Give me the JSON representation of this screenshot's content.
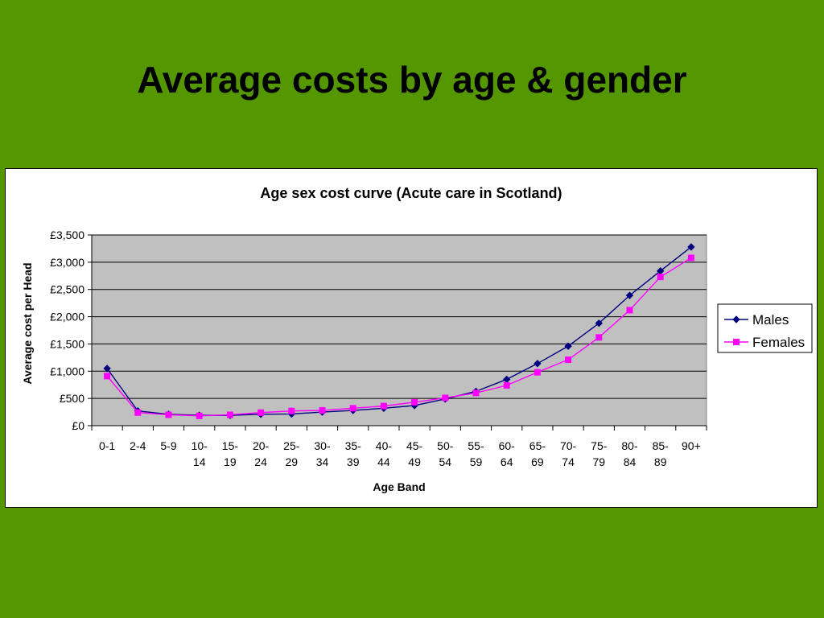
{
  "slide": {
    "title": "Average costs by age & gender"
  },
  "chart_data": {
    "type": "line",
    "title": "Age sex cost curve (Acute care in Scotland)",
    "xlabel": "Age Band",
    "ylabel": "Average cost per Head",
    "categories": [
      [
        "0-1"
      ],
      [
        "2-4"
      ],
      [
        "5-9"
      ],
      [
        "10-",
        "14"
      ],
      [
        "15-",
        "19"
      ],
      [
        "20-",
        "24"
      ],
      [
        "25-",
        "29"
      ],
      [
        "30-",
        "34"
      ],
      [
        "35-",
        "39"
      ],
      [
        "40-",
        "44"
      ],
      [
        "45-",
        "49"
      ],
      [
        "50-",
        "54"
      ],
      [
        "55-",
        "59"
      ],
      [
        "60-",
        "64"
      ],
      [
        "65-",
        "69"
      ],
      [
        "70-",
        "74"
      ],
      [
        "75-",
        "79"
      ],
      [
        "80-",
        "84"
      ],
      [
        "85-",
        "89"
      ],
      [
        "90+"
      ]
    ],
    "ylim": [
      0,
      3500
    ],
    "yticks": [
      {
        "value": 0,
        "label": "£0"
      },
      {
        "value": 500,
        "label": "£500"
      },
      {
        "value": 1000,
        "label": "£1,000"
      },
      {
        "value": 1500,
        "label": "£1,500"
      },
      {
        "value": 2000,
        "label": "£2,000"
      },
      {
        "value": 2500,
        "label": "£2,500"
      },
      {
        "value": 3000,
        "label": "£3,000"
      },
      {
        "value": 3500,
        "label": "£3,500"
      }
    ],
    "grid": true,
    "legend_position": "right",
    "series": [
      {
        "name": "Males",
        "color": "#000080",
        "marker": "diamond",
        "values": [
          1050,
          270,
          210,
          190,
          190,
          210,
          215,
          250,
          280,
          320,
          370,
          490,
          630,
          850,
          1140,
          1460,
          1880,
          2390,
          2840,
          3280
        ]
      },
      {
        "name": "Females",
        "color": "#ff00ff",
        "marker": "square",
        "values": [
          910,
          240,
          200,
          180,
          200,
          240,
          270,
          280,
          320,
          360,
          430,
          510,
          600,
          740,
          980,
          1210,
          1620,
          2120,
          2730,
          3080
        ]
      }
    ],
    "plot_background": "#c0c0c0"
  }
}
